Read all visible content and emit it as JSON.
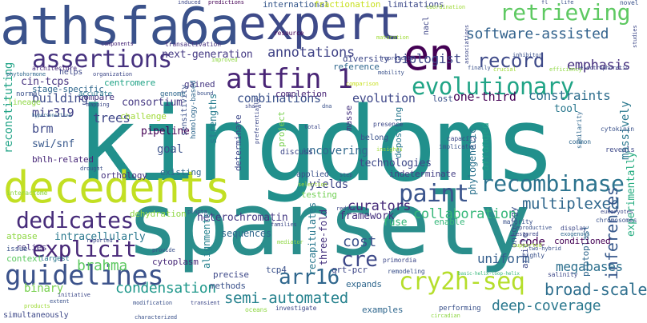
{
  "words": [
    {
      "text": "kingdoms",
      "color": "#21908c"
    },
    {
      "text": "sparsely",
      "color": "#2a8e8c"
    },
    {
      "text": "athsfa6a",
      "color": "#3b528b"
    },
    {
      "text": "expert",
      "color": "#3e4a89"
    },
    {
      "text": "decedents",
      "color": "#c2df23"
    },
    {
      "text": "en",
      "color": "#440154"
    },
    {
      "text": "evolutionary",
      "color": "#20a486"
    },
    {
      "text": "assertions",
      "color": "#46317e"
    },
    {
      "text": "attfin 1",
      "color": "#482475"
    },
    {
      "text": "paint",
      "color": "#3a548c"
    },
    {
      "text": "recombinase",
      "color": "#2c738e"
    },
    {
      "text": "cry2h-seq",
      "color": "#b5de2b"
    },
    {
      "text": "guidelines",
      "color": "#3b528b"
    },
    {
      "text": "explicit",
      "color": "#482878"
    },
    {
      "text": "dedicates",
      "color": "#472c7a"
    },
    {
      "text": "arr16",
      "color": "#31688e"
    },
    {
      "text": "cre",
      "color": "#3e4989"
    },
    {
      "text": "retrieving",
      "color": "#5ec962"
    },
    {
      "text": "record",
      "color": "#3e4a89"
    },
    {
      "text": "annotations",
      "color": "#414487"
    },
    {
      "text": "biologist",
      "color": "#3f4788"
    },
    {
      "text": "emphasis",
      "color": "#46307e"
    },
    {
      "text": "software-assisted",
      "color": "#33638d"
    },
    {
      "text": "next-generation",
      "color": "#443983"
    },
    {
      "text": "multiplexed",
      "color": "#31688e"
    },
    {
      "text": "collaboration",
      "color": "#35b779"
    },
    {
      "text": "curators",
      "color": "#472c7a"
    },
    {
      "text": "condensation",
      "color": "#1f988b"
    },
    {
      "text": "semi-automated",
      "color": "#26828e"
    },
    {
      "text": "broad-scale",
      "color": "#2e6f8e"
    },
    {
      "text": "deep-coverage",
      "color": "#2a788e"
    },
    {
      "text": "inferences",
      "color": "#38598c"
    },
    {
      "text": "megabases",
      "color": "#2d708e"
    },
    {
      "text": "brahma",
      "color": "#5ec962"
    },
    {
      "text": "binary",
      "color": "#7ad151"
    },
    {
      "text": "cost",
      "color": "#3b528b"
    },
    {
      "text": "uniform",
      "color": "#355f8d"
    },
    {
      "text": "constraints",
      "color": "#2e6e8e"
    },
    {
      "text": "evolution",
      "color": "#3f4889"
    },
    {
      "text": "one-third",
      "color": "#440154"
    },
    {
      "text": "combinations",
      "color": "#3b528b"
    },
    {
      "text": "building",
      "color": "#3e4c8a"
    },
    {
      "text": "cin-tcps",
      "color": "#46337f"
    },
    {
      "text": "trees",
      "color": "#3f4788"
    },
    {
      "text": "mir319",
      "color": "#424186"
    },
    {
      "text": "brm",
      "color": "#3e4989"
    },
    {
      "text": "swi/snf",
      "color": "#38588c"
    },
    {
      "text": "pipeline",
      "color": "#440154"
    },
    {
      "text": "consortium",
      "color": "#453882"
    },
    {
      "text": "goal",
      "color": "#3b528b"
    },
    {
      "text": "centromere",
      "color": "#20a386"
    },
    {
      "text": "stage-specific",
      "color": "#31688e"
    },
    {
      "text": "compare",
      "color": "#46337f"
    },
    {
      "text": "strengths",
      "color": "#287c8e"
    },
    {
      "text": "gained",
      "color": "#453882"
    },
    {
      "text": "completion",
      "color": "#482475"
    },
    {
      "text": "uncovering",
      "color": "#31688e"
    },
    {
      "text": "technologies",
      "color": "#3e4989"
    },
    {
      "text": "testing",
      "color": "#73d056"
    },
    {
      "text": "yields",
      "color": "#3f4889"
    },
    {
      "text": "framework",
      "color": "#46307e"
    },
    {
      "text": "heterochromatin",
      "color": "#443983"
    },
    {
      "text": "intracellularly",
      "color": "#2a788e"
    },
    {
      "text": "dehydration",
      "color": "#8fd744"
    },
    {
      "text": "sequences",
      "color": "#31688e"
    },
    {
      "text": "alignments",
      "color": "#26828e"
    },
    {
      "text": "recapitulates",
      "color": "#2a788e"
    },
    {
      "text": "three-fold",
      "color": "#46337f"
    },
    {
      "text": "qrt-pcr",
      "color": "#3f4889"
    },
    {
      "text": "fuse",
      "color": "#35b779"
    },
    {
      "text": "code",
      "color": "#440154"
    },
    {
      "text": "arranged",
      "color": "#1f9e89"
    },
    {
      "text": "indeterminate",
      "color": "#433e85"
    },
    {
      "text": "ontology",
      "color": "#3b528b"
    },
    {
      "text": "phylogenetic",
      "color": "#2c728e"
    },
    {
      "text": "experimentally",
      "color": "#27ad81"
    },
    {
      "text": "massively",
      "color": "#2a788e"
    },
    {
      "text": "reconstituting",
      "color": "#20a386"
    },
    {
      "text": "bhlh-related",
      "color": "#482878"
    },
    {
      "text": "orthology",
      "color": "#46327e"
    },
    {
      "text": "existing",
      "color": "#31688e"
    },
    {
      "text": "challenge",
      "color": "#a0da39"
    },
    {
      "text": "sensitivity",
      "color": "#3b528b"
    },
    {
      "text": "homology-based",
      "color": "#31688e"
    },
    {
      "text": "determinate",
      "color": "#3e4989"
    },
    {
      "text": "international",
      "color": "#38598c"
    },
    {
      "text": "fractionation",
      "color": "#c8e020"
    },
    {
      "text": "limitations",
      "color": "#3e4a89"
    },
    {
      "text": "normal",
      "color": "#3b528b"
    },
    {
      "text": "accurate",
      "color": "#2a788e"
    },
    {
      "text": "genome",
      "color": "#31688e"
    },
    {
      "text": "predictions",
      "color": "#440154"
    },
    {
      "text": "diversity",
      "color": "#3e4989"
    },
    {
      "text": "reference",
      "color": "#31688e"
    },
    {
      "text": "nacl",
      "color": "#3f4788"
    },
    {
      "text": "lost",
      "color": "#3b528b"
    },
    {
      "text": "project",
      "color": "#7ad151"
    },
    {
      "text": "depositing",
      "color": "#2a788e"
    },
    {
      "text": "belong",
      "color": "#3b528b"
    },
    {
      "text": "masse",
      "color": "#46337f"
    },
    {
      "text": "article",
      "color": "#3e4989"
    },
    {
      "text": "protoplast",
      "color": "#31688e"
    },
    {
      "text": "cytoplasm",
      "color": "#482878"
    },
    {
      "text": "precise",
      "color": "#3e4989"
    },
    {
      "text": "methods",
      "color": "#3b528b"
    },
    {
      "text": "tcp4",
      "color": "#3b528b"
    },
    {
      "text": "relies",
      "color": "#46337f"
    },
    {
      "text": "context",
      "color": "#5ec962"
    },
    {
      "text": "issue",
      "color": "#3b528b"
    },
    {
      "text": "atpase",
      "color": "#8fd744"
    },
    {
      "text": "largest",
      "color": "#2a788e"
    },
    {
      "text": "examples",
      "color": "#31688e"
    },
    {
      "text": "performing",
      "color": "#3b528b"
    },
    {
      "text": "simultaneously",
      "color": "#3e4989"
    },
    {
      "text": "characterized",
      "color": "#3b528b"
    },
    {
      "text": "expands",
      "color": "#31688e"
    },
    {
      "text": "enable",
      "color": "#35b779"
    },
    {
      "text": "tool",
      "color": "#2a788e"
    },
    {
      "text": "applied",
      "color": "#3b528b"
    },
    {
      "text": "discuss",
      "color": "#3e4989"
    },
    {
      "text": "helps",
      "color": "#3e4989"
    },
    {
      "text": "lineage",
      "color": "#8fd744"
    },
    {
      "text": "architecture",
      "color": "#482878"
    },
    {
      "text": "components",
      "color": "#482878"
    },
    {
      "text": "transactivation",
      "color": "#46307e"
    },
    {
      "text": "resource",
      "color": "#440154"
    },
    {
      "text": "phytohormone",
      "color": "#31688e"
    },
    {
      "text": "mapping",
      "color": "#3e4989"
    },
    {
      "text": "mobility",
      "color": "#3b528b"
    },
    {
      "text": "represents",
      "color": "#3e4989"
    },
    {
      "text": "improved",
      "color": "#8fd744"
    },
    {
      "text": "comparison",
      "color": "#c8e020"
    },
    {
      "text": "reveals",
      "color": "#3e4989"
    },
    {
      "text": "common",
      "color": "#31688e"
    },
    {
      "text": "cytokinin",
      "color": "#3b528b"
    },
    {
      "text": "similarity",
      "color": "#31688e"
    },
    {
      "text": "capacity",
      "color": "#3e4989"
    },
    {
      "text": "implicated",
      "color": "#3b528b"
    },
    {
      "text": "presence",
      "color": "#3e4989"
    },
    {
      "text": "insights",
      "color": "#a0da39"
    },
    {
      "text": "chromosomes",
      "color": "#3b528b"
    },
    {
      "text": "eukaryotes",
      "color": "#3e4989"
    },
    {
      "text": "majority",
      "color": "#3b528b"
    },
    {
      "text": "display",
      "color": "#3e4989"
    },
    {
      "text": "reproductive",
      "color": "#3b528b"
    },
    {
      "text": "restored",
      "color": "#3e4989"
    },
    {
      "text": "conditioned",
      "color": "#440154"
    },
    {
      "text": "exogenous",
      "color": "#31688e"
    },
    {
      "text": "supported",
      "color": "#a0da39"
    },
    {
      "text": "highly",
      "color": "#3b528b"
    },
    {
      "text": "two-hybrid",
      "color": "#3b528b"
    },
    {
      "text": "basic-helix-loop-helix",
      "color": "#35b779"
    },
    {
      "text": "salinity",
      "color": "#3e4989"
    },
    {
      "text": "remodeling",
      "color": "#3b528b"
    },
    {
      "text": "primordia",
      "color": "#3e4989"
    },
    {
      "text": "circadian",
      "color": "#8fd744"
    },
    {
      "text": "investigate",
      "color": "#3e4989"
    },
    {
      "text": "oceans",
      "color": "#8fd744"
    },
    {
      "text": "modification",
      "color": "#3b528b"
    },
    {
      "text": "transient",
      "color": "#3e4989"
    },
    {
      "text": "initiative",
      "color": "#3e4989"
    },
    {
      "text": "extent",
      "color": "#3b528b"
    },
    {
      "text": "products",
      "color": "#a0da39"
    },
    {
      "text": "reported",
      "color": "#3e4989"
    },
    {
      "text": "provide",
      "color": "#3b528b"
    },
    {
      "text": "mediator",
      "color": "#8fd744"
    },
    {
      "text": "families",
      "color": "#3e4989"
    },
    {
      "text": "planta",
      "color": "#3b528b"
    },
    {
      "text": "reduce",
      "color": "#3e4989"
    },
    {
      "text": "interactome",
      "color": "#8fd744"
    },
    {
      "text": "drought",
      "color": "#3b528b"
    },
    {
      "text": "hypersensitive",
      "color": "#31688e"
    },
    {
      "text": "preferentially",
      "color": "#3e4989"
    },
    {
      "text": "selection",
      "color": "#a0da39"
    },
    {
      "text": "step",
      "color": "#3b528b"
    },
    {
      "text": "total",
      "color": "#3e4989"
    },
    {
      "text": "dna",
      "color": "#3b528b"
    },
    {
      "text": "share",
      "color": "#3e4989"
    },
    {
      "text": "bound",
      "color": "#3b528b"
    },
    {
      "text": "organization",
      "color": "#3e4989"
    },
    {
      "text": "inhibitor",
      "color": "#3b528b"
    },
    {
      "text": "efficiency",
      "color": "#8fd744"
    },
    {
      "text": "electrophoretic",
      "color": "#3e4989"
    },
    {
      "text": "crucial",
      "color": "#a0da39"
    },
    {
      "text": "finally",
      "color": "#3b528b"
    },
    {
      "text": "associations",
      "color": "#3e4989"
    },
    {
      "text": "maturation",
      "color": "#a0da39"
    },
    {
      "text": "induced",
      "color": "#3e4989"
    },
    {
      "text": "life",
      "color": "#3b528b"
    },
    {
      "text": "fl",
      "color": "#3e4989"
    },
    {
      "text": "novel",
      "color": "#3b528b"
    },
    {
      "text": "studies",
      "color": "#3e4989"
    },
    {
      "text": "coordination",
      "color": "#a0da39"
    }
  ]
}
